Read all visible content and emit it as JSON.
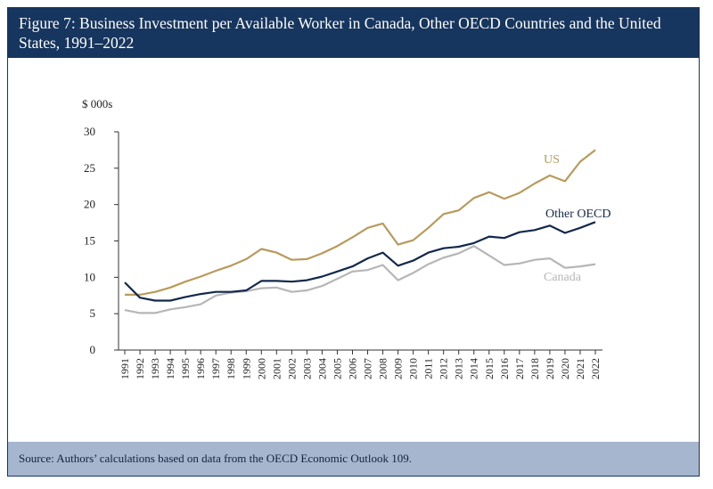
{
  "figure": {
    "title": "Figure 7: Business Investment per Available Worker in Canada, Other OECD Countries and the United States, 1991–2022",
    "source": "Source: Authors’ calculations based on data from the OECD Economic Outlook 109."
  },
  "colors": {
    "header_bg": "#16355f",
    "source_bg": "#a7b6cf",
    "us": "#b99a5b",
    "other_oecd": "#13294b",
    "canada": "#b6b6b9",
    "axis": "#333333"
  },
  "chart_data": {
    "type": "line",
    "title": "Figure 7: Business Investment per Available Worker in Canada, Other OECD Countries and the United States, 1991–2022",
    "ylabel": "$ 000s",
    "xlabel": "",
    "ylim": [
      0,
      30
    ],
    "yticks": [
      0,
      5,
      10,
      15,
      20,
      25,
      30
    ],
    "grid": false,
    "legend": "inline labels at right",
    "x": [
      "1991",
      "1992",
      "1993",
      "1994",
      "1995",
      "1996",
      "1997",
      "1998",
      "1999",
      "2000",
      "2001",
      "2002",
      "2003",
      "2004",
      "2005",
      "2006",
      "2007",
      "2008",
      "2009",
      "2010",
      "2011",
      "2012",
      "2013",
      "2014",
      "2015",
      "2016",
      "2017",
      "2018",
      "2019",
      "2020",
      "2021",
      "2022"
    ],
    "series": [
      {
        "name": "US",
        "color": "#b99a5b",
        "values": [
          7.6,
          7.6,
          8.0,
          8.6,
          9.4,
          10.1,
          10.9,
          11.6,
          12.5,
          13.9,
          13.4,
          12.4,
          12.5,
          13.3,
          14.3,
          15.5,
          16.8,
          17.4,
          14.5,
          15.1,
          16.8,
          18.7,
          19.2,
          20.9,
          21.7,
          20.8,
          21.6,
          22.9,
          24.0,
          23.2,
          25.9,
          27.5
        ]
      },
      {
        "name": "Other OECD",
        "color": "#13294b",
        "values": [
          9.3,
          7.2,
          6.8,
          6.8,
          7.3,
          7.7,
          8.0,
          8.0,
          8.2,
          9.5,
          9.5,
          9.4,
          9.6,
          10.1,
          10.8,
          11.5,
          12.6,
          13.4,
          11.6,
          12.3,
          13.4,
          14.0,
          14.2,
          14.7,
          15.6,
          15.4,
          16.2,
          16.5,
          17.1,
          16.1,
          16.8,
          17.6
        ]
      },
      {
        "name": "Canada",
        "color": "#b6b6b9",
        "values": [
          5.5,
          5.1,
          5.1,
          5.6,
          5.9,
          6.3,
          7.5,
          7.9,
          8.1,
          8.5,
          8.6,
          8.0,
          8.2,
          8.8,
          9.8,
          10.8,
          11.0,
          11.7,
          9.6,
          10.6,
          11.8,
          12.7,
          13.3,
          14.3,
          13.0,
          11.7,
          11.9,
          12.4,
          12.6,
          11.3,
          11.5,
          11.8
        ]
      }
    ]
  }
}
